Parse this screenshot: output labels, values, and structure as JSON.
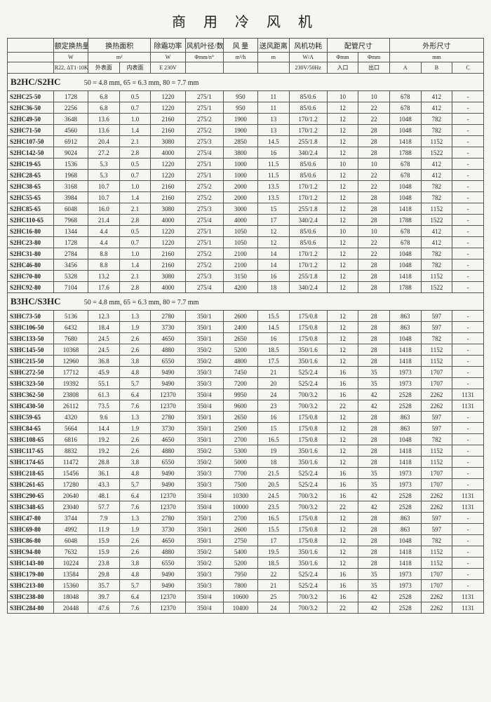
{
  "title": "商 用 冷 风 机",
  "headers": {
    "row1": [
      "",
      "额定换热量",
      "换热面积",
      "除霜功率",
      "风机叶径/数量",
      "风 量",
      "送风距离",
      "风机功耗",
      "配管尺寸",
      "外形尺寸"
    ],
    "row2": [
      "",
      "W",
      "m²",
      "W",
      "Φmm/n°",
      "m³/h",
      "m",
      "W/A",
      "Φmm",
      "Φmm",
      "mm"
    ],
    "row3": [
      "",
      "R22, ΔT1·10K",
      "外表面",
      "内表面",
      "E 230V",
      "",
      "",
      "",
      "230V/50Hz",
      "入口",
      "出口",
      "A",
      "B",
      "C"
    ]
  },
  "sections": [
    {
      "name": "B2HC/S2HC",
      "sub": "50 = 4.8 mm,  65 = 6.3 mm,  80 = 7.7 mm",
      "rows": [
        [
          "S2HC25-50",
          "1728",
          "6.8",
          "0.5",
          "1220",
          "275/1",
          "950",
          "11",
          "85/0.6",
          "10",
          "10",
          "678",
          "412",
          "-"
        ],
        [
          "S2HC36-50",
          "2256",
          "6.8",
          "0.7",
          "1220",
          "275/1",
          "950",
          "11",
          "85/0.6",
          "12",
          "22",
          "678",
          "412",
          "-"
        ],
        [
          "S2HC49-50",
          "3648",
          "13.6",
          "1.0",
          "2160",
          "275/2",
          "1900",
          "13",
          "170/1.2",
          "12",
          "22",
          "1048",
          "782",
          "-"
        ],
        [
          "S2HC71-50",
          "4560",
          "13.6",
          "1.4",
          "2160",
          "275/2",
          "1900",
          "13",
          "170/1.2",
          "12",
          "28",
          "1048",
          "782",
          "-"
        ],
        [
          "S2HC107-50",
          "6912",
          "20.4",
          "2.1",
          "3080",
          "275/3",
          "2850",
          "14.5",
          "255/1.8",
          "12",
          "28",
          "1418",
          "1152",
          "-"
        ],
        [
          "S2HC142-50",
          "9024",
          "27.2",
          "2.8",
          "4000",
          "275/4",
          "3800",
          "16",
          "340/2.4",
          "12",
          "28",
          "1788",
          "1522",
          "-"
        ],
        [
          "S2HC19-65",
          "1536",
          "5.3",
          "0.5",
          "1220",
          "275/1",
          "1000",
          "11.5",
          "85/0.6",
          "10",
          "10",
          "678",
          "412",
          "-"
        ],
        [
          "S2HC28-65",
          "1968",
          "5.3",
          "0.7",
          "1220",
          "275/1",
          "1000",
          "11.5",
          "85/0.6",
          "12",
          "22",
          "678",
          "412",
          "-"
        ],
        [
          "S2HC38-65",
          "3168",
          "10.7",
          "1.0",
          "2160",
          "275/2",
          "2000",
          "13.5",
          "170/1.2",
          "12",
          "22",
          "1048",
          "782",
          "-"
        ],
        [
          "S2HC55-65",
          "3984",
          "10.7",
          "1.4",
          "2160",
          "275/2",
          "2000",
          "13.5",
          "170/1.2",
          "12",
          "28",
          "1048",
          "782",
          "-"
        ],
        [
          "S2HC85-65",
          "6048",
          "16.0",
          "2.1",
          "3080",
          "275/3",
          "3000",
          "15",
          "255/1.8",
          "12",
          "28",
          "1418",
          "1152",
          "-"
        ],
        [
          "S2HC110-65",
          "7968",
          "21.4",
          "2.8",
          "4000",
          "275/4",
          "4000",
          "17",
          "340/2.4",
          "12",
          "28",
          "1788",
          "1522",
          "-"
        ],
        [
          "S2HC16-80",
          "1344",
          "4.4",
          "0.5",
          "1220",
          "275/1",
          "1050",
          "12",
          "85/0.6",
          "10",
          "10",
          "678",
          "412",
          "-"
        ],
        [
          "S2HC23-80",
          "1728",
          "4.4",
          "0.7",
          "1220",
          "275/1",
          "1050",
          "12",
          "85/0.6",
          "12",
          "22",
          "678",
          "412",
          "-"
        ],
        [
          "S2HC31-80",
          "2784",
          "8.8",
          "1.0",
          "2160",
          "275/2",
          "2100",
          "14",
          "170/1.2",
          "12",
          "22",
          "1048",
          "782",
          "-"
        ],
        [
          "S2HC46-80",
          "3456",
          "8.8",
          "1.4",
          "2160",
          "275/2",
          "2100",
          "14",
          "170/1.2",
          "12",
          "28",
          "1048",
          "782",
          "-"
        ],
        [
          "S2HC70-80",
          "5328",
          "13.2",
          "2.1",
          "3080",
          "275/3",
          "3150",
          "16",
          "255/1.8",
          "12",
          "28",
          "1418",
          "1152",
          "-"
        ],
        [
          "S2HC92-80",
          "7104",
          "17.6",
          "2.8",
          "4000",
          "275/4",
          "4200",
          "18",
          "340/2.4",
          "12",
          "28",
          "1788",
          "1522",
          "-"
        ]
      ]
    },
    {
      "name": "B3HC/S3HC",
      "sub": "50 = 4.8 mm,  65 = 6.3 mm,  80 = 7.7 mm",
      "rows": [
        [
          "S3HC73-50",
          "5136",
          "12.3",
          "1.3",
          "2780",
          "350/1",
          "2600",
          "15.5",
          "175/0.8",
          "12",
          "28",
          "863",
          "597",
          "-"
        ],
        [
          "S3HC106-50",
          "6432",
          "18.4",
          "1.9",
          "3730",
          "350/1",
          "2400",
          "14.5",
          "175/0.8",
          "12",
          "28",
          "863",
          "597",
          "-"
        ],
        [
          "S3HC133-50",
          "7680",
          "24.5",
          "2.6",
          "4650",
          "350/1",
          "2650",
          "16",
          "175/0.8",
          "12",
          "28",
          "1048",
          "782",
          "-"
        ],
        [
          "S3HC145-50",
          "10368",
          "24.5",
          "2.6",
          "4880",
          "350/2",
          "5200",
          "18.5",
          "350/1.6",
          "12",
          "28",
          "1418",
          "1152",
          "-"
        ],
        [
          "S3HC215-50",
          "12960",
          "36.8",
          "3.8",
          "6550",
          "350/2",
          "4800",
          "17.5",
          "350/1.6",
          "12",
          "28",
          "1418",
          "1152",
          "-"
        ],
        [
          "S3HC272-50",
          "17712",
          "45.9",
          "4.8",
          "9490",
          "350/3",
          "7450",
          "21",
          "525/2.4",
          "16",
          "35",
          "1973",
          "1707",
          "-"
        ],
        [
          "S3HC323-50",
          "19392",
          "55.1",
          "5.7",
          "9490",
          "350/3",
          "7200",
          "20",
          "525/2.4",
          "16",
          "35",
          "1973",
          "1707",
          "-"
        ],
        [
          "S3HC362-50",
          "23808",
          "61.3",
          "6.4",
          "12370",
          "350/4",
          "9950",
          "24",
          "700/3.2",
          "16",
          "42",
          "2528",
          "2262",
          "1131"
        ],
        [
          "S3HC430-50",
          "26112",
          "73.5",
          "7.6",
          "12370",
          "350/4",
          "9600",
          "23",
          "700/3.2",
          "22",
          "42",
          "2528",
          "2262",
          "1131"
        ],
        [
          "S3HC59-65",
          "4320",
          "9.6",
          "1.3",
          "2780",
          "350/1",
          "2650",
          "16",
          "175/0.8",
          "12",
          "28",
          "863",
          "597",
          "-"
        ],
        [
          "S3HC84-65",
          "5664",
          "14.4",
          "1.9",
          "3730",
          "350/1",
          "2500",
          "15",
          "175/0.8",
          "12",
          "28",
          "863",
          "597",
          "-"
        ],
        [
          "S3HC108-65",
          "6816",
          "19.2",
          "2.6",
          "4650",
          "350/1",
          "2700",
          "16.5",
          "175/0.8",
          "12",
          "28",
          "1048",
          "782",
          "-"
        ],
        [
          "S3HC117-65",
          "8832",
          "19.2",
          "2.6",
          "4880",
          "350/2",
          "5300",
          "19",
          "350/1.6",
          "12",
          "28",
          "1418",
          "1152",
          "-"
        ],
        [
          "S3HC174-65",
          "11472",
          "28.8",
          "3.8",
          "6550",
          "350/2",
          "5000",
          "18",
          "350/1.6",
          "12",
          "28",
          "1418",
          "1152",
          "-"
        ],
        [
          "S3HC218-65",
          "15456",
          "36.1",
          "4.8",
          "9490",
          "350/3",
          "7700",
          "21.5",
          "525/2.4",
          "16",
          "35",
          "1973",
          "1707",
          "-"
        ],
        [
          "S3HC261-65",
          "17280",
          "43.3",
          "5.7",
          "9490",
          "350/3",
          "7500",
          "20.5",
          "525/2.4",
          "16",
          "35",
          "1973",
          "1707",
          "-"
        ],
        [
          "S3HC290-65",
          "20640",
          "48.1",
          "6.4",
          "12370",
          "350/4",
          "10300",
          "24.5",
          "700/3.2",
          "16",
          "42",
          "2528",
          "2262",
          "1131"
        ],
        [
          "S3HC348-65",
          "23040",
          "57.7",
          "7.6",
          "12370",
          "350/4",
          "10000",
          "23.5",
          "700/3.2",
          "22",
          "42",
          "2528",
          "2262",
          "1131"
        ],
        [
          "S3HC47-80",
          "3744",
          "7.9",
          "1.3",
          "2780",
          "350/1",
          "2700",
          "16.5",
          "175/0.8",
          "12",
          "28",
          "863",
          "597",
          "-"
        ],
        [
          "S3HC69-80",
          "4992",
          "11.9",
          "1.9",
          "3730",
          "350/1",
          "2600",
          "15.5",
          "175/0.8",
          "12",
          "28",
          "863",
          "597",
          "-"
        ],
        [
          "S3HC86-80",
          "6048",
          "15.9",
          "2.6",
          "4650",
          "350/1",
          "2750",
          "17",
          "175/0.8",
          "12",
          "28",
          "1048",
          "782",
          "-"
        ],
        [
          "S3HC94-80",
          "7632",
          "15.9",
          "2.6",
          "4880",
          "350/2",
          "5400",
          "19.5",
          "350/1.6",
          "12",
          "28",
          "1418",
          "1152",
          "-"
        ],
        [
          "S3HC143-80",
          "10224",
          "23.8",
          "3.8",
          "6550",
          "350/2",
          "5200",
          "18.5",
          "350/1.6",
          "12",
          "28",
          "1418",
          "1152",
          "-"
        ],
        [
          "S3HC179-80",
          "13584",
          "29.8",
          "4.8",
          "9490",
          "350/3",
          "7950",
          "22",
          "525/2.4",
          "16",
          "35",
          "1973",
          "1707",
          "-"
        ],
        [
          "S3HC213-80",
          "15360",
          "35.7",
          "5.7",
          "9490",
          "350/3",
          "7800",
          "21",
          "525/2.4",
          "16",
          "35",
          "1973",
          "1707",
          "-"
        ],
        [
          "S3HC238-80",
          "18048",
          "39.7",
          "6.4",
          "12370",
          "350/4",
          "10600",
          "25",
          "700/3.2",
          "16",
          "42",
          "2528",
          "2262",
          "1131"
        ],
        [
          "S3HC284-80",
          "20448",
          "47.6",
          "7.6",
          "12370",
          "350/4",
          "10400",
          "24",
          "700/3.2",
          "22",
          "42",
          "2528",
          "2262",
          "1131"
        ]
      ]
    }
  ]
}
